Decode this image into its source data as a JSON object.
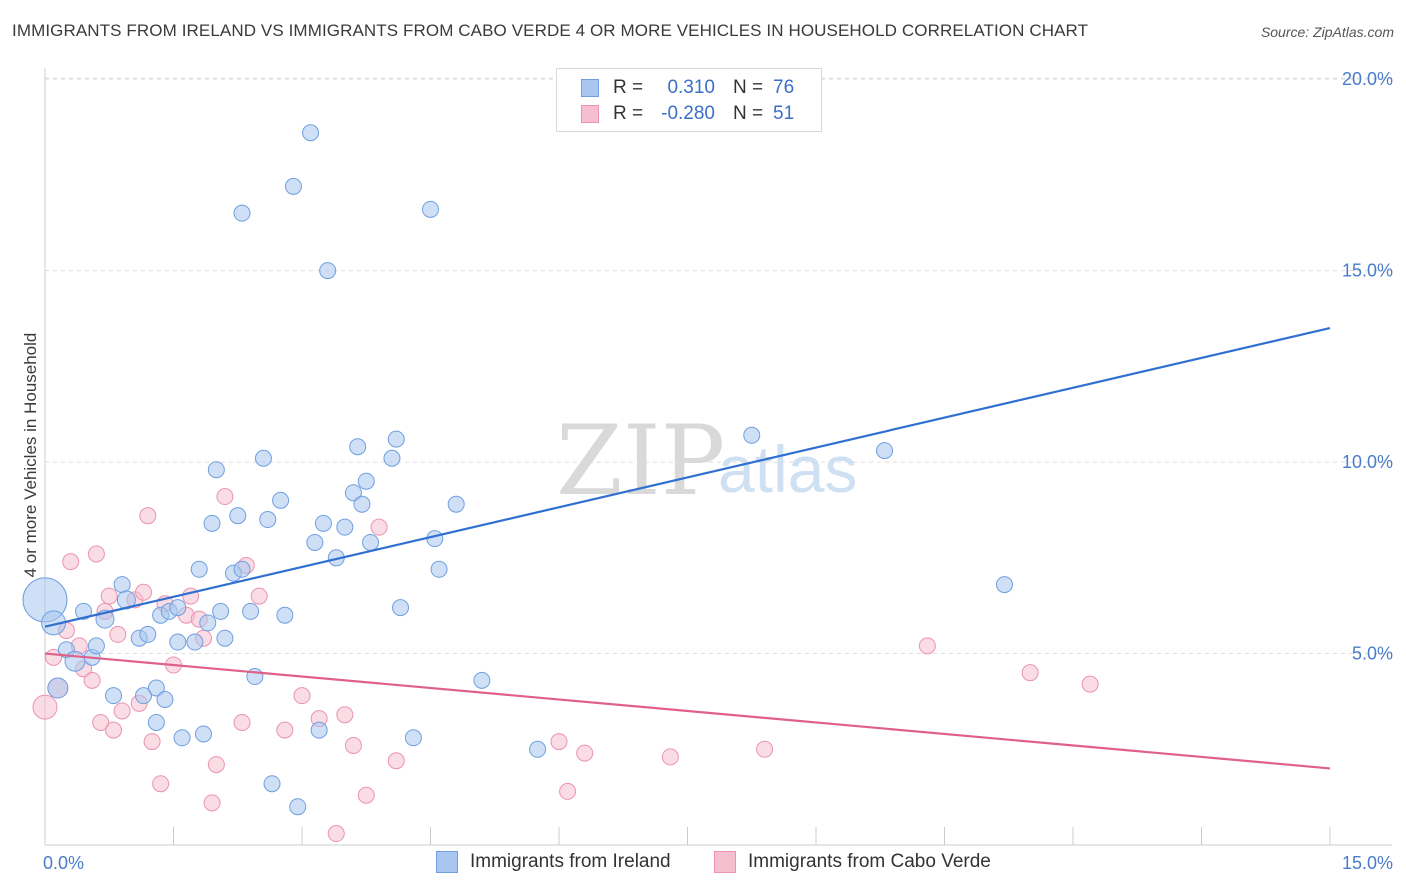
{
  "header": {
    "title": "IMMIGRANTS FROM IRELAND VS IMMIGRANTS FROM CABO VERDE 4 OR MORE VEHICLES IN HOUSEHOLD CORRELATION CHART",
    "source": "Source: ZipAtlas.com"
  },
  "watermark": {
    "part1": "ZIP",
    "part2": "atlas"
  },
  "legend": {
    "rows": [
      {
        "r_label": "R =",
        "r_value": "0.310",
        "n_label": "N =",
        "n_value": "76"
      },
      {
        "r_label": "R =",
        "r_value": "-0.280",
        "n_label": "N =",
        "n_value": "51"
      }
    ]
  },
  "bottom_legend": {
    "series1": "Immigrants from Ireland",
    "series2": "Immigrants from Cabo Verde"
  },
  "colors": {
    "blue_fill": "#a8c6ef",
    "blue_stroke": "#6f9fe0",
    "blue_line": "#3070d0",
    "pink_fill": "#f5bfd0",
    "pink_stroke": "#eb93b0",
    "pink_line": "#e0608a",
    "grid": "#dddddd",
    "tick_text": "#4a7cc9"
  },
  "chart_data": {
    "type": "scatter",
    "title": "IMMIGRANTS FROM IRELAND VS IMMIGRANTS FROM CABO VERDE 4 OR MORE VEHICLES IN HOUSEHOLD CORRELATION CHART",
    "xlabel": "",
    "ylabel": "4 or more Vehicles in Household",
    "xlim": [
      0,
      15
    ],
    "ylim": [
      0,
      20.5
    ],
    "x_tick_labels": [
      {
        "value": 0,
        "label": "0.0%"
      },
      {
        "value": 15,
        "label": "15.0%"
      }
    ],
    "y_tick_labels": [
      {
        "value": 5,
        "label": "5.0%"
      },
      {
        "value": 10,
        "label": "10.0%"
      },
      {
        "value": 15,
        "label": "15.0%"
      },
      {
        "value": 20,
        "label": "20.0%"
      }
    ],
    "grid": "horizontal dashed",
    "legend_position": "top-center",
    "series": [
      {
        "name": "Immigrants from Ireland",
        "color": "#a8c6ef",
        "trend": {
          "x": [
            0,
            15
          ],
          "y": [
            5.7,
            13.5
          ]
        },
        "points": [
          [
            0.0,
            6.4,
            22
          ],
          [
            0.1,
            5.8,
            12
          ],
          [
            0.15,
            4.1,
            10
          ],
          [
            0.25,
            5.1,
            8
          ],
          [
            0.35,
            4.8,
            10
          ],
          [
            0.45,
            6.1,
            8
          ],
          [
            0.55,
            4.9,
            8
          ],
          [
            0.6,
            5.2,
            8
          ],
          [
            0.7,
            5.9,
            9
          ],
          [
            0.8,
            3.9,
            8
          ],
          [
            0.9,
            6.8,
            8
          ],
          [
            0.95,
            6.4,
            9
          ],
          [
            1.1,
            5.4,
            8
          ],
          [
            1.15,
            3.9,
            8
          ],
          [
            1.2,
            5.5,
            8
          ],
          [
            1.3,
            4.1,
            8
          ],
          [
            1.3,
            3.2,
            8
          ],
          [
            1.35,
            6.0,
            8
          ],
          [
            1.4,
            3.8,
            8
          ],
          [
            1.45,
            6.1,
            8
          ],
          [
            1.55,
            6.2,
            8
          ],
          [
            1.55,
            5.3,
            8
          ],
          [
            1.6,
            2.8,
            8
          ],
          [
            1.75,
            5.3,
            8
          ],
          [
            1.8,
            7.2,
            8
          ],
          [
            1.85,
            2.9,
            8
          ],
          [
            1.9,
            5.8,
            8
          ],
          [
            1.95,
            8.4,
            8
          ],
          [
            2.0,
            9.8,
            8
          ],
          [
            2.05,
            6.1,
            8
          ],
          [
            2.1,
            5.4,
            8
          ],
          [
            2.2,
            7.1,
            8
          ],
          [
            2.25,
            8.6,
            8
          ],
          [
            2.3,
            7.2,
            8
          ],
          [
            2.3,
            16.5,
            8
          ],
          [
            2.4,
            6.1,
            8
          ],
          [
            2.45,
            4.4,
            8
          ],
          [
            2.55,
            10.1,
            8
          ],
          [
            2.6,
            8.5,
            8
          ],
          [
            2.65,
            1.6,
            8
          ],
          [
            2.75,
            9.0,
            8
          ],
          [
            2.8,
            6.0,
            8
          ],
          [
            2.9,
            17.2,
            8
          ],
          [
            2.95,
            1.0,
            8
          ],
          [
            3.1,
            18.6,
            8
          ],
          [
            3.15,
            7.9,
            8
          ],
          [
            3.2,
            3.0,
            8
          ],
          [
            3.25,
            8.4,
            8
          ],
          [
            3.3,
            15.0,
            8
          ],
          [
            3.4,
            7.5,
            8
          ],
          [
            3.5,
            8.3,
            8
          ],
          [
            3.6,
            9.2,
            8
          ],
          [
            3.65,
            10.4,
            8
          ],
          [
            3.7,
            8.9,
            8
          ],
          [
            3.75,
            9.5,
            8
          ],
          [
            3.8,
            7.9,
            8
          ],
          [
            4.05,
            10.1,
            8
          ],
          [
            4.1,
            10.6,
            8
          ],
          [
            4.15,
            6.2,
            8
          ],
          [
            4.3,
            2.8,
            8
          ],
          [
            4.5,
            16.6,
            8
          ],
          [
            4.55,
            8.0,
            8
          ],
          [
            4.6,
            7.2,
            8
          ],
          [
            4.8,
            8.9,
            8
          ],
          [
            5.1,
            4.3,
            8
          ],
          [
            5.75,
            2.5,
            8
          ],
          [
            8.25,
            10.7,
            8
          ],
          [
            9.8,
            10.3,
            8
          ],
          [
            11.2,
            6.8,
            8
          ]
        ]
      },
      {
        "name": "Immigrants from Cabo Verde",
        "color": "#f5bfd0",
        "trend": {
          "x": [
            0,
            15
          ],
          "y": [
            5.0,
            2.0
          ]
        },
        "points": [
          [
            0.0,
            3.6,
            12
          ],
          [
            0.1,
            4.9,
            8
          ],
          [
            0.15,
            4.1,
            10
          ],
          [
            0.25,
            5.6,
            8
          ],
          [
            0.3,
            7.4,
            8
          ],
          [
            0.4,
            5.2,
            8
          ],
          [
            0.45,
            4.6,
            8
          ],
          [
            0.55,
            4.3,
            8
          ],
          [
            0.6,
            7.6,
            8
          ],
          [
            0.65,
            3.2,
            8
          ],
          [
            0.7,
            6.1,
            8
          ],
          [
            0.75,
            6.5,
            8
          ],
          [
            0.8,
            3.0,
            8
          ],
          [
            0.85,
            5.5,
            8
          ],
          [
            0.9,
            3.5,
            8
          ],
          [
            1.05,
            6.4,
            8
          ],
          [
            1.1,
            3.7,
            8
          ],
          [
            1.15,
            6.6,
            8
          ],
          [
            1.2,
            8.6,
            8
          ],
          [
            1.25,
            2.7,
            8
          ],
          [
            1.35,
            1.6,
            8
          ],
          [
            1.4,
            6.3,
            8
          ],
          [
            1.5,
            4.7,
            8
          ],
          [
            1.65,
            6.0,
            8
          ],
          [
            1.7,
            6.5,
            8
          ],
          [
            1.8,
            5.9,
            8
          ],
          [
            1.85,
            5.4,
            8
          ],
          [
            1.95,
            1.1,
            8
          ],
          [
            2.0,
            2.1,
            8
          ],
          [
            2.1,
            9.1,
            8
          ],
          [
            2.3,
            3.2,
            8
          ],
          [
            2.35,
            7.3,
            8
          ],
          [
            2.5,
            6.5,
            8
          ],
          [
            2.8,
            3.0,
            8
          ],
          [
            3.0,
            3.9,
            8
          ],
          [
            3.2,
            3.3,
            8
          ],
          [
            3.4,
            0.3,
            8
          ],
          [
            3.5,
            3.4,
            8
          ],
          [
            3.6,
            2.6,
            8
          ],
          [
            3.75,
            1.3,
            8
          ],
          [
            3.9,
            8.3,
            8
          ],
          [
            4.1,
            2.2,
            8
          ],
          [
            6.0,
            2.7,
            8
          ],
          [
            6.1,
            1.4,
            8
          ],
          [
            6.3,
            2.4,
            8
          ],
          [
            7.3,
            2.3,
            8
          ],
          [
            8.4,
            2.5,
            8
          ],
          [
            10.3,
            5.2,
            8
          ],
          [
            11.5,
            4.5,
            8
          ],
          [
            12.2,
            4.2,
            8
          ]
        ]
      }
    ]
  }
}
